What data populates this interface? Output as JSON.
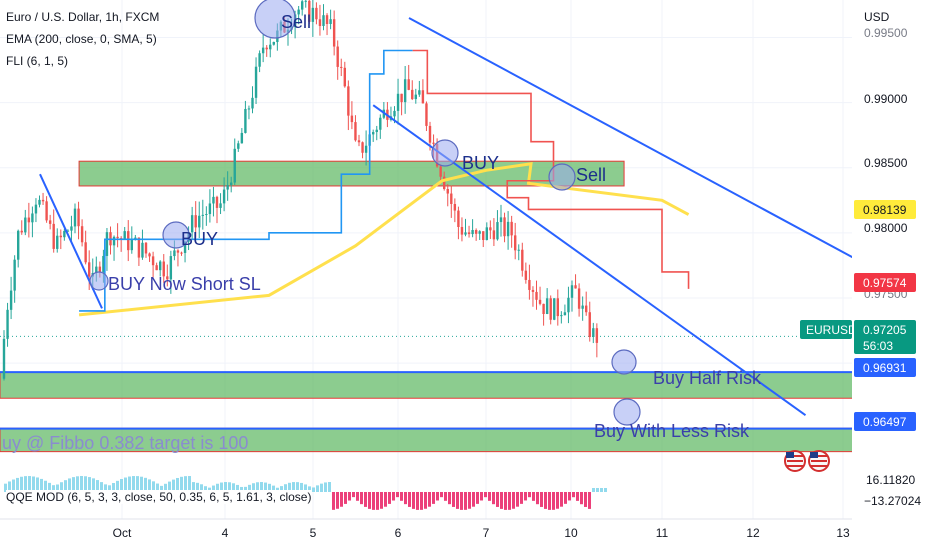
{
  "legend": {
    "symbol": "Euro / U.S. Dollar, 1h, FXCM",
    "ema": "EMA (200, close, 0, SMA, 5)",
    "fli": "FLI (6, 1, 5)",
    "qqe": "QQE MOD (6, 5, 3, 3, close, 50, 0.35, 6, 5, 1.61, 3, close)"
  },
  "price_axis": {
    "currency": "USD",
    "ticks": [
      "0.99500",
      "0.99000",
      "0.98500",
      "0.98000",
      "0.97500"
    ],
    "tags": {
      "ema_value": "0.98139",
      "fli_value": "0.97574",
      "symbol": "EURUSD",
      "last_price": "0.97205",
      "countdown": "56:03",
      "level_1": "0.96931",
      "level_2": "0.96497"
    },
    "osc_values": [
      "16.11820",
      "−13.27024"
    ]
  },
  "time_axis": {
    "labels": [
      "Oct",
      "4",
      "5",
      "6",
      "7",
      "10",
      "11",
      "12",
      "13"
    ]
  },
  "annotations": {
    "sell_top": "Sell",
    "buy_mid": "BUY",
    "sell_right": "Sell",
    "buy_left": "BUY",
    "buy_short_sl": "BUY Now Short SL",
    "buy_half_risk": "Buy Half Risk",
    "buy_less_risk": "Buy With Less Risk",
    "fibbo_note": "uy @ Fibbo 0.382 target is 100"
  },
  "colors": {
    "bull": "#26a69a",
    "bear": "#ef5350",
    "ema": "#ffe04d",
    "fli_up": "#2196f3",
    "fli_down": "#f05350",
    "channel": "#2962ff",
    "zone_fill": "#66bb6a",
    "zone_border": "#e53935",
    "price_tag": "#2962ff",
    "ema_tag": "#ffeb3b",
    "fli_tag": "#f23645",
    "symbol_tag": "#089981",
    "osc_up": "#7fd3ea",
    "osc_down": "#e91e63"
  },
  "chart_data": {
    "type": "candlestick",
    "symbol": "EURUSD",
    "timeframe": "1h",
    "y_scale": {
      "min": 0.964,
      "max": 0.996
    },
    "x_range": {
      "start": "2022-09-30T14:00",
      "end": "2022-10-13T12:00"
    },
    "series": [
      {
        "name": "EMA (200, close, 0, SMA, 5)",
        "points": [
          [
            "2022-09-30T14:00",
            0.9737
          ],
          [
            "2022-10-03T12:00",
            0.9752
          ],
          [
            "2022-10-04T12:00",
            0.979
          ],
          [
            "2022-10-05T12:00",
            0.984
          ],
          [
            "2022-10-06T00:00",
            0.9848
          ],
          [
            "2022-10-06T12:00",
            0.9853
          ],
          [
            "2022-10-07T12:00",
            0.9838
          ],
          [
            "2022-10-10T00:00",
            0.9825
          ],
          [
            "2022-10-10T07:00",
            0.9814
          ]
        ]
      },
      {
        "name": "FLI (6, 1, 5)",
        "points": [
          [
            "2022-09-30T14:00",
            0.974
          ],
          [
            "2022-09-30T20:00",
            0.9795
          ],
          [
            "2022-10-03T06:00",
            0.9795
          ],
          [
            "2022-10-03T12:00",
            0.98
          ],
          [
            "2022-10-04T02:00",
            0.98
          ],
          [
            "2022-10-04T08:00",
            0.9845
          ],
          [
            "2022-10-04T16:00",
            0.9922
          ],
          [
            "2022-10-04T20:00",
            0.994
          ],
          [
            "2022-10-05T04:00",
            0.994
          ],
          [
            "2022-10-05T08:00",
            0.9907
          ],
          [
            "2022-10-06T06:00",
            0.9907
          ],
          [
            "2022-10-06T12:00",
            0.987
          ],
          [
            "2022-10-06T18:00",
            0.984
          ],
          [
            "2022-10-07T06:00",
            0.9827
          ],
          [
            "2022-10-07T12:00",
            0.9818
          ],
          [
            "2022-10-07T20:00",
            0.9818
          ],
          [
            "2022-10-10T00:00",
            0.977
          ],
          [
            "2022-10-10T07:00",
            0.9757
          ]
        ]
      }
    ],
    "channel": {
      "upper": [
        [
          "2022-10-05T03:00",
          0.9965
        ],
        [
          "2022-10-12T22:00",
          0.9751
        ]
      ],
      "lower": [
        [
          "2022-10-04T17:00",
          0.9898
        ],
        [
          "2022-10-11T14:00",
          0.966
        ]
      ]
    },
    "zones": [
      {
        "label": "",
        "from": "2022-09-30T14:00",
        "to": "2022-10-09T14:00",
        "top": 0.9855,
        "bottom": 0.9836
      },
      {
        "label": "Buy Half Risk",
        "from": "2022-09-30T00:00",
        "to": "2022-10-12T14:00",
        "top": 0.9693,
        "bottom": 0.9673
      },
      {
        "label": "Buy With Less Risk",
        "from": "2022-09-30T00:00",
        "to": "2022-10-12T14:00",
        "top": 0.965,
        "bottom": 0.9632
      }
    ],
    "levels": [
      0.96931,
      0.96497
    ],
    "last_price": 0.97205,
    "candles": []
  }
}
